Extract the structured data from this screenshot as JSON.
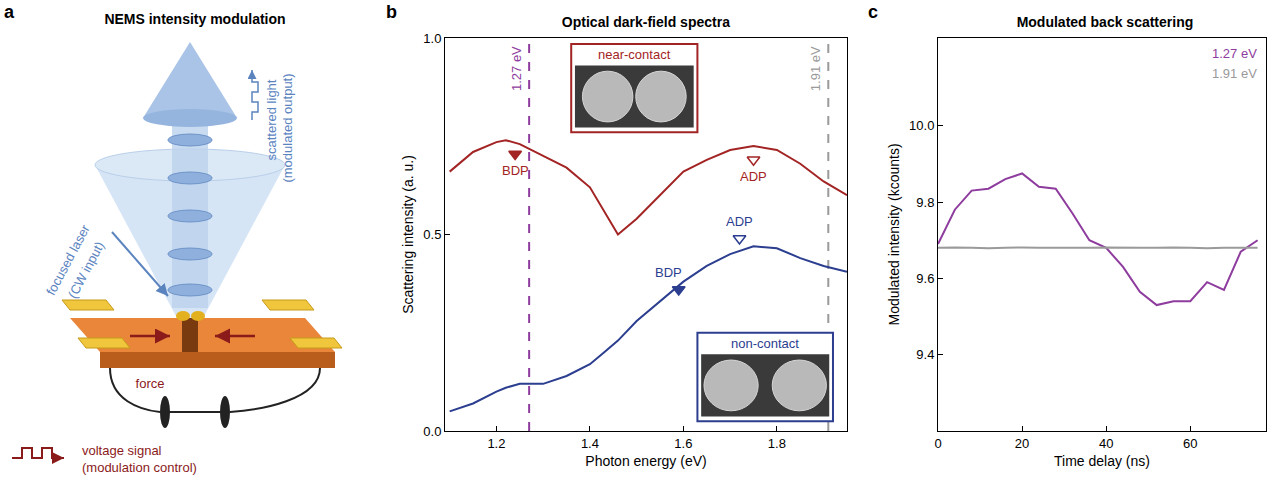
{
  "panel_letters": [
    "a",
    "b",
    "c"
  ],
  "diagram": {
    "title": "NEMS intensity modulation",
    "labels": {
      "laser": "focused laser",
      "laser_note": "(CW input)",
      "scattered": "scattered light",
      "scattered_note": "(modulated output)",
      "force": "force",
      "voltage": "voltage signal",
      "voltage_note": "(modulation control)"
    }
  },
  "chart_data": [
    {
      "type": "line",
      "title": "Optical dark-field spectra",
      "x_label": "Photon energy (eV)",
      "y_label": "Scattering intensity (a. u.)",
      "x": [
        1.1,
        1.15,
        1.2,
        1.22,
        1.25,
        1.3,
        1.35,
        1.4,
        1.43,
        1.46,
        1.5,
        1.55,
        1.6,
        1.65,
        1.7,
        1.75,
        1.8,
        1.85,
        1.9,
        1.95
      ],
      "series": [
        {
          "name": "near-contact",
          "color": "#a32424",
          "values": [
            0.66,
            0.71,
            0.735,
            0.74,
            0.73,
            0.7,
            0.67,
            0.62,
            0.56,
            0.5,
            0.54,
            0.6,
            0.66,
            0.69,
            0.715,
            0.725,
            0.715,
            0.68,
            0.635,
            0.6
          ],
          "peaks": [
            {
              "label": "BDP",
              "x": 1.24,
              "y": 0.705,
              "marker": "filled"
            },
            {
              "label": "ADP",
              "x": 1.75,
              "y": 0.69,
              "marker": "open"
            }
          ]
        },
        {
          "name": "non-contact",
          "color": "#2c3e8f",
          "values": [
            0.05,
            0.07,
            0.1,
            0.11,
            0.12,
            0.12,
            0.14,
            0.17,
            0.2,
            0.23,
            0.28,
            0.33,
            0.38,
            0.42,
            0.45,
            0.47,
            0.465,
            0.44,
            0.42,
            0.405
          ],
          "peaks": [
            {
              "label": "BDP",
              "x": 1.59,
              "y": 0.36,
              "marker": "filled"
            },
            {
              "label": "ADP",
              "x": 1.72,
              "y": 0.49,
              "marker": "open"
            }
          ]
        }
      ],
      "reference_lines": [
        {
          "x": 1.27,
          "label": "1.27 eV",
          "color": "#8e3c9e",
          "line_style": "dashed"
        },
        {
          "x": 1.91,
          "label": "1.91 eV",
          "color": "#9a9a9a",
          "line_style": "dashed"
        }
      ],
      "xlim": [
        1.09,
        1.95
      ],
      "xticks": [
        1.2,
        1.4,
        1.6,
        1.8
      ],
      "ylim": [
        0,
        1
      ],
      "yticks": [
        {
          "value": 0,
          "label": "0.0"
        },
        {
          "value": 0.5,
          "label": "0.5"
        },
        {
          "value": 1,
          "label": "1.0"
        }
      ],
      "grid": false
    },
    {
      "type": "line",
      "title": "Modulated back scattering",
      "x_label": "Time delay (ns)",
      "y_label": "Modulated intensity (kcounts)",
      "x": [
        0,
        4,
        8,
        12,
        16,
        20,
        24,
        28,
        32,
        36,
        40,
        44,
        48,
        52,
        56,
        60,
        64,
        68,
        72,
        76
      ],
      "series": [
        {
          "name": "1.27 eV",
          "color": "#8e3c9e",
          "values": [
            9.69,
            9.78,
            9.83,
            9.835,
            9.86,
            9.875,
            9.84,
            9.835,
            9.77,
            9.7,
            9.68,
            9.63,
            9.565,
            9.53,
            9.54,
            9.54,
            9.59,
            9.57,
            9.67,
            9.7
          ]
        },
        {
          "name": "1.91 eV",
          "color": "#9a9a9a",
          "values": [
            9.68,
            9.681,
            9.68,
            9.679,
            9.68,
            9.681,
            9.68,
            9.68,
            9.679,
            9.68,
            9.681,
            9.68,
            9.68,
            9.68,
            9.681,
            9.68,
            9.679,
            9.68,
            9.68,
            9.68
          ]
        }
      ],
      "xlim": [
        0,
        78
      ],
      "xticks": [
        0,
        20,
        40,
        60
      ],
      "ylim": [
        9.2,
        10.23
      ],
      "yticks": [
        9.4,
        9.6,
        9.8,
        {
          "value": 10,
          "label": "10.0"
        }
      ],
      "legend": "top right",
      "grid": false
    }
  ]
}
